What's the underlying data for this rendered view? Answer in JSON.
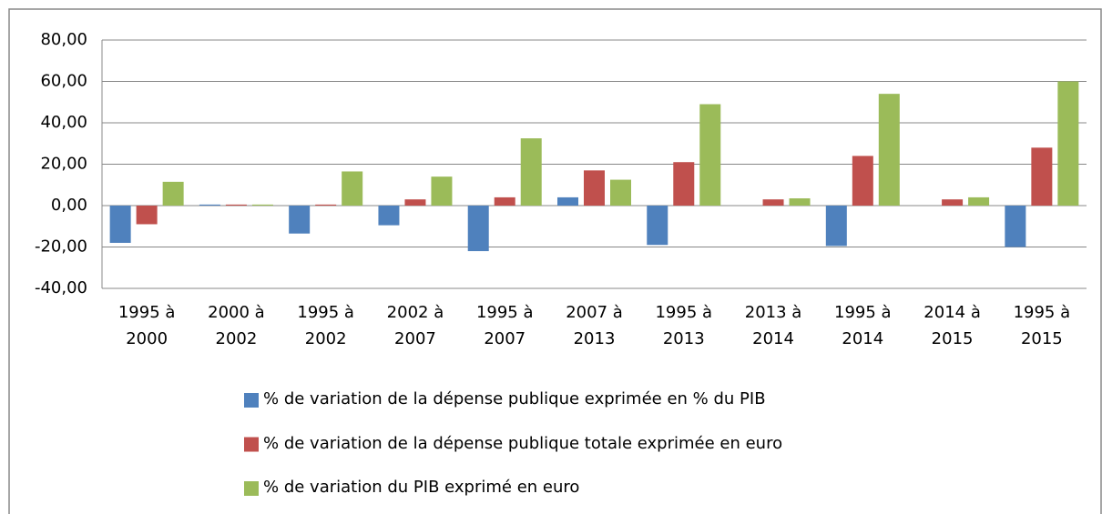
{
  "chart_data": {
    "type": "bar",
    "categories": [
      "1995 à 2000",
      "2000 à 2002",
      "1995 à 2002",
      "2002 à 2007",
      "1995 à 2007",
      "2007 à 2013",
      "1995 à 2013",
      "2013 à 2014",
      "1995 à 2014",
      "2014 à 2015",
      "1995 à 2015"
    ],
    "series": [
      {
        "name": "% de variation de la dépense publique exprimée  en % du PIB",
        "color": "#4f81bd",
        "values": [
          -18,
          0.5,
          -13.5,
          -9.5,
          -22,
          4,
          -19,
          0,
          -19.5,
          0,
          -20
        ]
      },
      {
        "name": "% de variation  de la dépense publique totale exprimée en euro",
        "color": "#c0504d",
        "values": [
          -9,
          0.5,
          0.5,
          3,
          4,
          17,
          21,
          3,
          24,
          3,
          28
        ]
      },
      {
        "name": "% de variation du PIB exprimé en euro",
        "color": "#9bbb59",
        "values": [
          11.5,
          0.5,
          16.5,
          14,
          32.5,
          12.5,
          49,
          3.5,
          54,
          4,
          60
        ]
      }
    ],
    "ylim": [
      -40,
      80
    ],
    "yticks": [
      {
        "value": -40,
        "label": "-40,00"
      },
      {
        "value": -20,
        "label": "-20,00"
      },
      {
        "value": 0,
        "label": "0,00"
      },
      {
        "value": 20,
        "label": "20,00"
      },
      {
        "value": 40,
        "label": "40,00"
      },
      {
        "value": 60,
        "label": "60,00"
      },
      {
        "value": 80,
        "label": "80,00"
      }
    ],
    "grid": true
  }
}
